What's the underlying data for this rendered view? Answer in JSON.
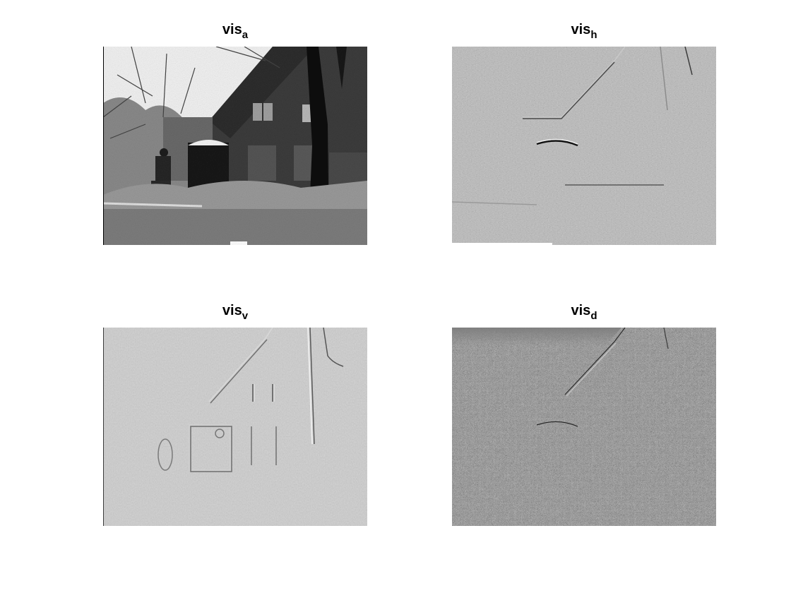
{
  "panels": [
    {
      "title_main": "vis",
      "title_sub": "a",
      "kind": "approximation"
    },
    {
      "title_main": "vis",
      "title_sub": "h",
      "kind": "horizontal-detail"
    },
    {
      "title_main": "vis",
      "title_sub": "v",
      "kind": "vertical-detail"
    },
    {
      "title_main": "vis",
      "title_sub": "d",
      "kind": "diagonal-detail"
    }
  ]
}
